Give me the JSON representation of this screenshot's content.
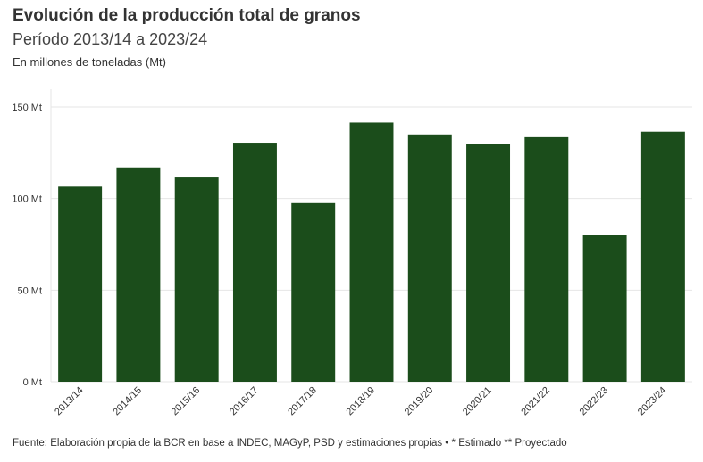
{
  "header": {
    "title": "Evolución de la producción total de granos",
    "subtitle": "Período 2013/14 a 2023/24",
    "unit_note": "En millones de toneladas (Mt)"
  },
  "footer": {
    "source": "Fuente: Elaboración propia de la BCR en base a INDEC, MAGyP, PSD y estimaciones propias • * Estimado ** Proyectado"
  },
  "colors": {
    "bar": "#1b4d1b",
    "grid": "#e6e6e6",
    "text": "#333333"
  },
  "chart_data": {
    "type": "bar",
    "title": "Evolución de la producción total de granos",
    "subtitle": "Período 2013/14 a 2023/24",
    "ylabel": "",
    "xlabel": "",
    "categories": [
      "2013/14",
      "2014/15",
      "2015/16",
      "2016/17",
      "2017/18",
      "2018/19",
      "2019/20",
      "2020/21",
      "2021/22",
      "2022/23",
      "2023/24"
    ],
    "values": [
      106.5,
      117,
      111.5,
      130.5,
      97.5,
      141.5,
      135,
      130,
      133.5,
      80,
      136.5
    ],
    "ylim": [
      0,
      150
    ],
    "yticks": [
      {
        "value": 0,
        "label": "0 Mt"
      },
      {
        "value": 50,
        "label": "50 Mt"
      },
      {
        "value": 100,
        "label": "100 Mt"
      },
      {
        "value": 150,
        "label": "150 Mt"
      }
    ],
    "grid": true,
    "legend": "none"
  }
}
